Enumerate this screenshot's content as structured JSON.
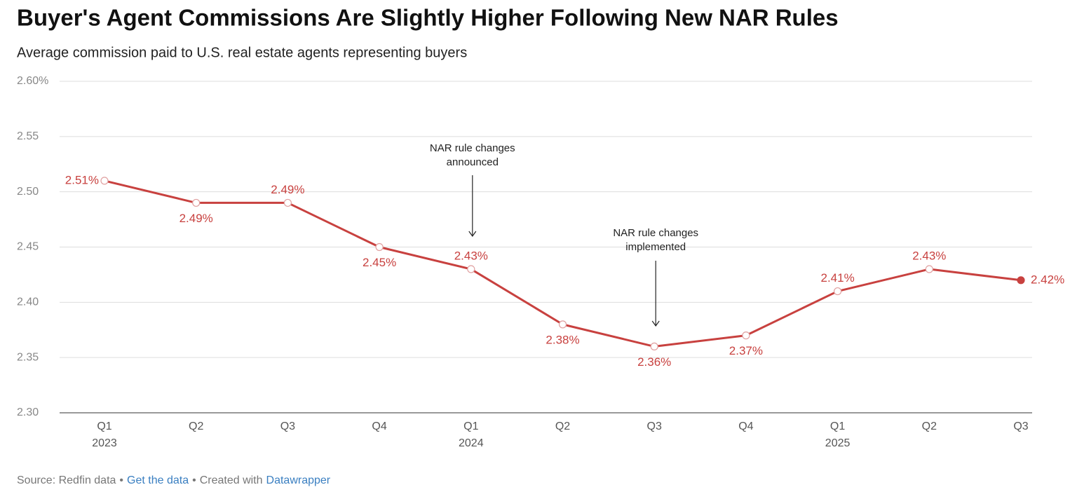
{
  "chart_data": {
    "type": "line",
    "title": "Buyer's Agent Commissions Are Slightly Higher Following New NAR Rules",
    "subtitle": "Average commission paid to U.S. real estate agents representing buyers",
    "categories": [
      "Q1",
      "Q2",
      "Q3",
      "Q4",
      "Q1",
      "Q2",
      "Q3",
      "Q4",
      "Q1",
      "Q2",
      "Q3"
    ],
    "category_years": [
      "2023",
      null,
      null,
      null,
      "2024",
      null,
      null,
      null,
      "2025",
      null,
      null
    ],
    "series": [
      {
        "name": "Average commission",
        "color": "#c8413f",
        "values": [
          2.51,
          2.49,
          2.49,
          2.45,
          2.43,
          2.38,
          2.36,
          2.37,
          2.41,
          2.43,
          2.42
        ],
        "value_labels": [
          "2.51%",
          "2.49%",
          "2.49%",
          "2.45%",
          "2.43%",
          "2.38%",
          "2.36%",
          "2.37%",
          "2.41%",
          "2.43%",
          "2.42%"
        ]
      }
    ],
    "ylim": [
      2.3,
      2.6
    ],
    "yticks": [
      {
        "value": 2.3,
        "label": "2.30"
      },
      2.35,
      {
        "value": 2.4,
        "label": "2.40"
      },
      2.45,
      {
        "value": 2.5,
        "label": "2.50"
      },
      2.55,
      {
        "value": 2.6,
        "label": "2.60%"
      }
    ],
    "grid": true,
    "annotations": [
      {
        "lines": [
          "NAR rule changes",
          "announced"
        ]
      },
      {
        "lines": [
          "NAR rule changes",
          "implemented"
        ]
      }
    ],
    "footer": [
      "Source: Redfin data",
      "•",
      "Get the data",
      "•",
      "Created with",
      "Datawrapper"
    ]
  }
}
